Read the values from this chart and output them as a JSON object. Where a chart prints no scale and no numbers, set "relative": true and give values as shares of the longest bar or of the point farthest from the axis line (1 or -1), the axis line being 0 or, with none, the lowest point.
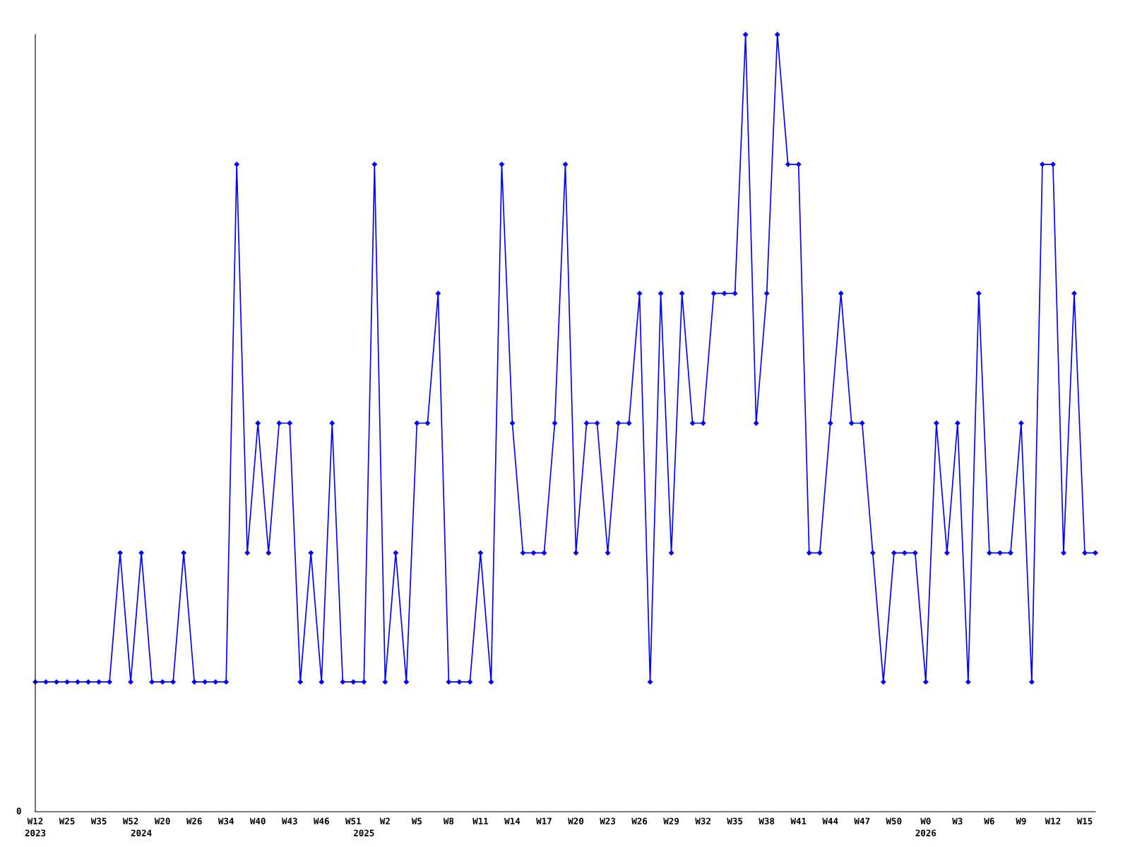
{
  "chart_data": {
    "type": "line",
    "relative": true,
    "marker": "diamond",
    "line_style": "solid",
    "grid": false,
    "legend": false,
    "categories": [
      "W12\n2023",
      null,
      null,
      "W25",
      null,
      null,
      "W35",
      null,
      null,
      "W52",
      "\n2024",
      null,
      "W20",
      null,
      null,
      "W26",
      null,
      null,
      "W34",
      null,
      null,
      "W40",
      null,
      null,
      "W43",
      null,
      null,
      "W46",
      null,
      null,
      "W51",
      "\n2025",
      null,
      "W2",
      null,
      null,
      "W5",
      null,
      null,
      "W8",
      null,
      null,
      "W11",
      null,
      null,
      "W14",
      null,
      null,
      "W17",
      null,
      null,
      "W20",
      null,
      null,
      "W23",
      null,
      null,
      "W26",
      null,
      null,
      "W29",
      null,
      null,
      "W32",
      null,
      null,
      "W35",
      null,
      null,
      "W38",
      null,
      null,
      "W41",
      null,
      null,
      "W44",
      null,
      null,
      "W47",
      null,
      null,
      "W50",
      null,
      null,
      "W0\n2026",
      null,
      null,
      "W3",
      null,
      null,
      "W6",
      null,
      null,
      "W9",
      null,
      null,
      "W12",
      null,
      null,
      "W15",
      null
    ],
    "series": [
      {
        "color": "#0000ff",
        "values": [
          0.167,
          0.167,
          0.167,
          0.167,
          0.167,
          0.167,
          0.167,
          0.167,
          0.333,
          0.167,
          0.333,
          0.167,
          0.167,
          0.167,
          0.333,
          0.167,
          0.167,
          0.167,
          0.167,
          0.833,
          0.333,
          0.5,
          0.333,
          0.5,
          0.5,
          0.167,
          0.333,
          0.167,
          0.5,
          0.167,
          0.167,
          0.167,
          0.833,
          0.167,
          0.333,
          0.167,
          0.5,
          0.5,
          0.667,
          0.167,
          0.167,
          0.167,
          0.333,
          0.167,
          0.833,
          0.5,
          0.333,
          0.333,
          0.333,
          0.5,
          0.833,
          0.333,
          0.5,
          0.5,
          0.333,
          0.5,
          0.5,
          0.667,
          0.167,
          0.667,
          0.333,
          0.667,
          0.5,
          0.5,
          0.667,
          0.667,
          0.667,
          1,
          0.5,
          0.667,
          1,
          0.833,
          0.833,
          0.333,
          0.333,
          0.5,
          0.667,
          0.5,
          0.5,
          0.333,
          0.167,
          0.333,
          0.333,
          0.333,
          0.167,
          0.5,
          0.333,
          0.5,
          0.167,
          0.667,
          0.333,
          0.333,
          0.333,
          0.5,
          0.167,
          0.833,
          0.833,
          0.333,
          0.667,
          0.333,
          0.333
        ]
      }
    ],
    "annotations": [
      "0"
    ]
  }
}
